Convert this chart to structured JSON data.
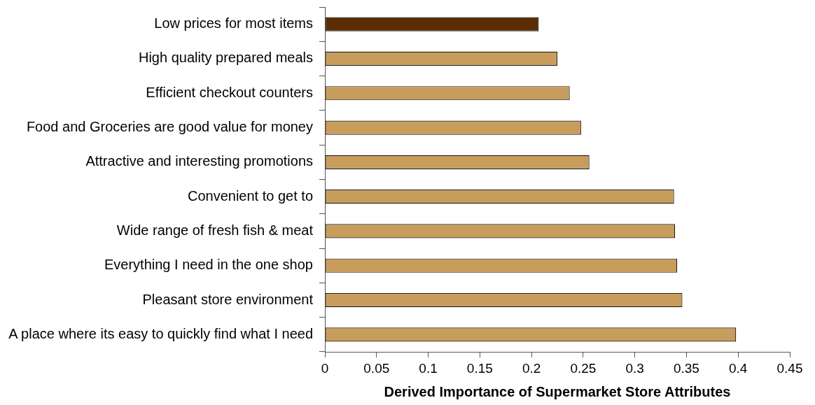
{
  "chart_data": {
    "type": "bar",
    "orientation": "horizontal",
    "xlabel": "Derived Importance of Supermarket Store Attributes",
    "categories": [
      "Low prices for most items",
      "High quality prepared meals",
      "Efficient checkout counters",
      "Food and Groceries are good value for money",
      "Attractive and interesting promotions",
      "Convenient to get to",
      "Wide range of fresh fish & meat",
      "Everything I need in the one shop",
      "Pleasant store environment",
      "A place where its easy to quickly find what I need"
    ],
    "values": [
      0.207,
      0.225,
      0.237,
      0.248,
      0.256,
      0.338,
      0.339,
      0.341,
      0.346,
      0.398
    ],
    "colors": [
      "#5a2d00",
      "#c89d5b",
      "#c89d5b",
      "#c89d5b",
      "#c89d5b",
      "#c89d5b",
      "#c89d5b",
      "#c89d5b",
      "#c89d5b",
      "#c89d5b"
    ],
    "xlim": [
      0,
      0.45
    ],
    "xticks": [
      0,
      0.05,
      0.1,
      0.15,
      0.2,
      0.25,
      0.3,
      0.35,
      0.4,
      0.45
    ]
  }
}
